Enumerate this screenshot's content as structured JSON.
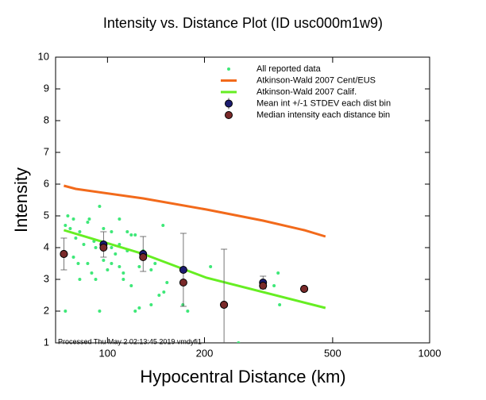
{
  "chart_data": {
    "type": "scatter",
    "title": "Intensity vs. Distance Plot (ID usc000m1w9)",
    "x_label": "Hypocentral Distance (km)",
    "y_label": "Intensity",
    "footer": "Processed Thu May  2 02:13:45 2019 vmdyfi1",
    "xscale": "log",
    "xlim": [
      69,
      1000
    ],
    "xticks": [
      100,
      200,
      500,
      1000
    ],
    "ylim": [
      1,
      10
    ],
    "yticks": [
      1,
      2,
      3,
      4,
      5,
      6,
      7,
      8,
      9,
      10
    ],
    "series": [
      {
        "name": "All reported data",
        "type": "scatter",
        "color": "#3ee878",
        "x": [
          74.0,
          75.3,
          78.4,
          76.6,
          79.7,
          82.0,
          86.8,
          87.8,
          90.8,
          94.5,
          97.2,
          102.9,
          108.9,
          115.2,
          118.5,
          121.9,
          148.7,
          74.0,
          78.4,
          81.1,
          86.8,
          89.3,
          91.9,
          94.5,
          100,
          102.9,
          105.8,
          108.9,
          112.0,
          118.5,
          121.9,
          125.5,
          136.6,
          144.6,
          149.6,
          153.0,
          171.4,
          177.4,
          208.9,
          255,
          328.9,
          338.5,
          342.3,
          84.4,
          91.9,
          102.9,
          115.2,
          129.1,
          108.9,
          136.6,
          140.5,
          97.2,
          82.0,
          112.0,
          125.5
        ],
        "values": [
          4.7,
          5.0,
          4.9,
          4.6,
          4.3,
          4.5,
          4.8,
          4.9,
          4.2,
          5.3,
          4.6,
          4.5,
          4.9,
          4.5,
          4.4,
          4.4,
          4.7,
          2.0,
          3.7,
          3.5,
          3.5,
          3.2,
          3.0,
          2.0,
          3.3,
          3.5,
          3.8,
          3.4,
          3.2,
          2.8,
          2.0,
          2.1,
          2.2,
          2.5,
          2.6,
          2.9,
          2.2,
          2.0,
          3.4,
          1.0,
          2.8,
          3.2,
          2.2,
          4.1,
          4.0,
          4.0,
          3.9,
          3.9,
          4.1,
          3.3,
          3.5,
          3.6,
          3.0,
          3.0,
          3.4
        ]
      },
      {
        "name": "Atkinson-Wald 2007 Cent/EUS",
        "type": "line",
        "color": "#f26a1b",
        "x": [
          73.2,
          79.7,
          129.1,
          203,
          304,
          408,
          475
        ],
        "values": [
          5.95,
          5.85,
          5.55,
          5.2,
          4.85,
          4.55,
          4.35
        ]
      },
      {
        "name": "Atkinson-Wald 2007 Calif.",
        "type": "line",
        "color": "#66ee22",
        "x": [
          73.2,
          129.1,
          203,
          475
        ],
        "values": [
          4.55,
          3.8,
          3.05,
          2.1
        ]
      },
      {
        "name": "Mean int +/-1 STDEV each dist bin",
        "type": "errorbar",
        "color": "#1c1c70",
        "x": [
          73.2,
          97.2,
          129,
          172,
          230,
          304,
          408
        ],
        "values": [
          3.8,
          4.1,
          3.8,
          3.3,
          2.2,
          2.9,
          2.7
        ],
        "errors": [
          0.5,
          0.4,
          0.55,
          1.15,
          1.75,
          0.2,
          0
        ]
      },
      {
        "name": "Median intensity each distance bin",
        "type": "scatter-large",
        "color": "#7a2a2a",
        "x": [
          73.2,
          97.2,
          129,
          172,
          230,
          304,
          408
        ],
        "values": [
          3.8,
          4.0,
          3.7,
          2.9,
          2.2,
          2.8,
          2.7
        ]
      }
    ]
  }
}
